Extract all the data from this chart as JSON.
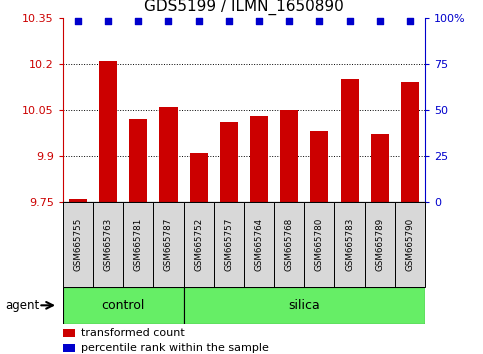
{
  "title": "GDS5199 / ILMN_1650890",
  "samples": [
    "GSM665755",
    "GSM665763",
    "GSM665781",
    "GSM665787",
    "GSM665752",
    "GSM665757",
    "GSM665764",
    "GSM665768",
    "GSM665780",
    "GSM665783",
    "GSM665789",
    "GSM665790"
  ],
  "bar_values": [
    9.76,
    10.21,
    10.02,
    10.06,
    9.91,
    10.01,
    10.03,
    10.05,
    9.98,
    10.15,
    9.97,
    10.14
  ],
  "percentile_values": [
    98,
    98,
    98,
    98,
    98,
    98,
    98,
    98,
    98,
    98,
    98,
    98
  ],
  "bar_color": "#cc0000",
  "dot_color": "#0000cc",
  "ylim_left": [
    9.75,
    10.35
  ],
  "ylim_right": [
    0,
    100
  ],
  "yticks_left": [
    9.75,
    9.9,
    10.05,
    10.2,
    10.35
  ],
  "yticks_right": [
    0,
    25,
    50,
    75,
    100
  ],
  "ytick_labels_left": [
    "9.75",
    "9.9",
    "10.05",
    "10.2",
    "10.35"
  ],
  "ytick_labels_right": [
    "0",
    "25",
    "50",
    "75",
    "100%"
  ],
  "grid_values": [
    9.9,
    10.05,
    10.2
  ],
  "control_count": 4,
  "silica_count": 8,
  "control_color": "#66ee66",
  "silica_color": "#66ee66",
  "agent_label": "agent",
  "control_label": "control",
  "silica_label": "silica",
  "legend_bar_label": "transformed count",
  "legend_dot_label": "percentile rank within the sample",
  "sample_bg_color": "#d8d8d8",
  "plot_bg_color": "#ffffff",
  "bar_width": 0.6,
  "title_fontsize": 11,
  "tick_fontsize": 8,
  "label_fontsize": 8.5
}
